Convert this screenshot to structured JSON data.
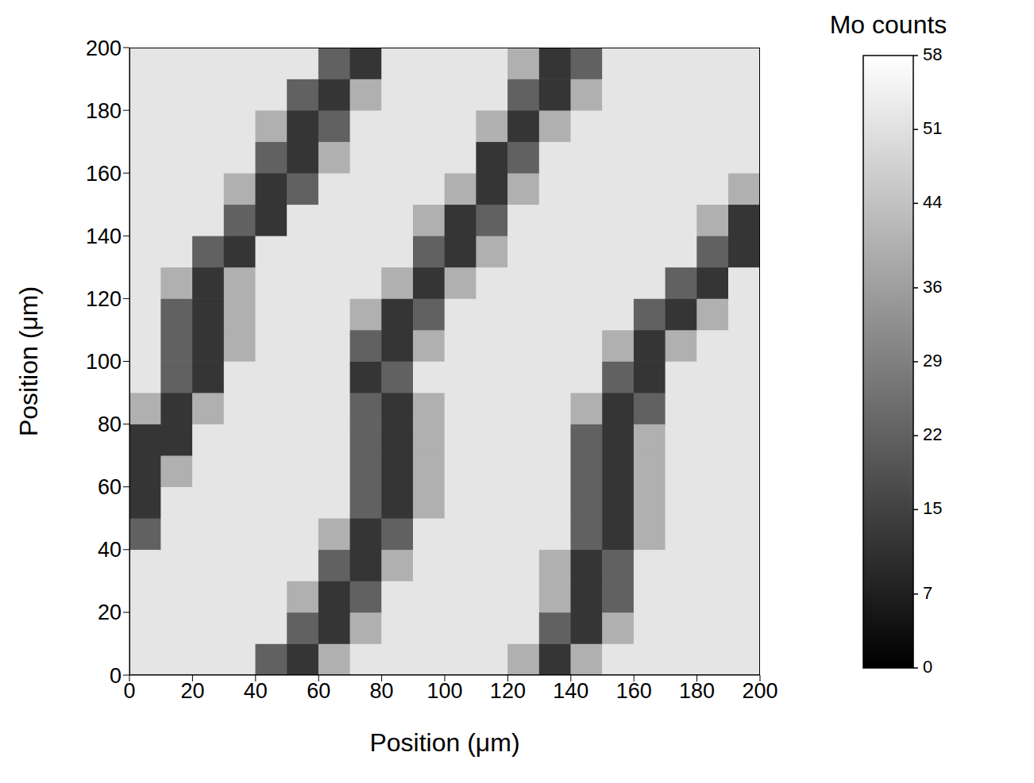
{
  "chart_data": {
    "type": "heatmap",
    "xlabel": "Position (μm)",
    "ylabel": "Position (μm)",
    "xlim": [
      0,
      200
    ],
    "ylim": [
      0,
      200
    ],
    "xticks": [
      0,
      20,
      40,
      60,
      80,
      100,
      120,
      140,
      160,
      180,
      200
    ],
    "yticks": [
      0,
      20,
      40,
      60,
      80,
      100,
      120,
      140,
      160,
      180,
      200
    ],
    "x": [
      5,
      15,
      25,
      35,
      45,
      55,
      65,
      75,
      85,
      95,
      105,
      115,
      125,
      135,
      145,
      155,
      165,
      175,
      185,
      195
    ],
    "y": [
      5,
      15,
      25,
      35,
      45,
      55,
      65,
      75,
      85,
      95,
      105,
      115,
      125,
      135,
      145,
      155,
      165,
      175,
      185,
      195
    ],
    "cells": [
      [
        52,
        52,
        52,
        52,
        22,
        12,
        40,
        52,
        52,
        52,
        52,
        52,
        40,
        12,
        40,
        52,
        52,
        52,
        52,
        52
      ],
      [
        52,
        52,
        52,
        52,
        52,
        22,
        12,
        40,
        52,
        52,
        52,
        52,
        52,
        22,
        12,
        40,
        52,
        52,
        52,
        52
      ],
      [
        52,
        52,
        52,
        52,
        52,
        40,
        12,
        22,
        52,
        52,
        52,
        52,
        52,
        40,
        12,
        22,
        52,
        52,
        52,
        52
      ],
      [
        52,
        52,
        52,
        52,
        52,
        52,
        22,
        12,
        40,
        52,
        52,
        52,
        52,
        40,
        12,
        22,
        52,
        52,
        52,
        52
      ],
      [
        22,
        52,
        52,
        52,
        52,
        52,
        40,
        12,
        22,
        52,
        52,
        52,
        52,
        52,
        22,
        12,
        40,
        52,
        52,
        52
      ],
      [
        12,
        52,
        52,
        52,
        52,
        52,
        52,
        22,
        12,
        40,
        52,
        52,
        52,
        52,
        22,
        12,
        40,
        52,
        52,
        52
      ],
      [
        12,
        40,
        52,
        52,
        52,
        52,
        52,
        22,
        12,
        40,
        52,
        52,
        52,
        52,
        22,
        12,
        40,
        52,
        52,
        52
      ],
      [
        12,
        12,
        52,
        52,
        52,
        52,
        52,
        22,
        12,
        40,
        52,
        52,
        52,
        52,
        22,
        12,
        40,
        52,
        52,
        52
      ],
      [
        40,
        12,
        40,
        52,
        52,
        52,
        52,
        22,
        12,
        40,
        52,
        52,
        52,
        52,
        40,
        12,
        22,
        52,
        52,
        52
      ],
      [
        52,
        22,
        12,
        52,
        52,
        52,
        52,
        12,
        22,
        52,
        52,
        52,
        52,
        52,
        52,
        22,
        12,
        52,
        52,
        52
      ],
      [
        52,
        22,
        12,
        40,
        52,
        52,
        52,
        22,
        12,
        40,
        52,
        52,
        52,
        52,
        52,
        40,
        12,
        40,
        52,
        52
      ],
      [
        52,
        22,
        12,
        40,
        52,
        52,
        52,
        40,
        12,
        22,
        52,
        52,
        52,
        52,
        52,
        52,
        22,
        12,
        40,
        52
      ],
      [
        52,
        40,
        12,
        40,
        52,
        52,
        52,
        52,
        40,
        12,
        40,
        52,
        52,
        52,
        52,
        52,
        52,
        22,
        12,
        52
      ],
      [
        52,
        52,
        22,
        12,
        52,
        52,
        52,
        52,
        52,
        22,
        12,
        40,
        52,
        52,
        52,
        52,
        52,
        52,
        22,
        12
      ],
      [
        52,
        52,
        52,
        22,
        12,
        52,
        52,
        52,
        52,
        40,
        12,
        22,
        52,
        52,
        52,
        52,
        52,
        52,
        40,
        12
      ],
      [
        52,
        52,
        52,
        40,
        12,
        22,
        52,
        52,
        52,
        52,
        40,
        12,
        40,
        52,
        52,
        52,
        52,
        52,
        52,
        40
      ],
      [
        52,
        52,
        52,
        52,
        22,
        12,
        40,
        52,
        52,
        52,
        52,
        12,
        22,
        52,
        52,
        52,
        52,
        52,
        52,
        52
      ],
      [
        52,
        52,
        52,
        52,
        40,
        12,
        22,
        52,
        52,
        52,
        52,
        40,
        12,
        40,
        52,
        52,
        52,
        52,
        52,
        52
      ],
      [
        52,
        52,
        52,
        52,
        52,
        22,
        12,
        40,
        52,
        52,
        52,
        52,
        22,
        12,
        40,
        52,
        52,
        52,
        52,
        52
      ],
      [
        52,
        52,
        52,
        52,
        52,
        52,
        22,
        12,
        52,
        52,
        52,
        52,
        40,
        12,
        22,
        52,
        52,
        52,
        52,
        52
      ]
    ],
    "colorbar": {
      "title": "Mo counts",
      "range": [
        0,
        58
      ],
      "ticks": [
        0,
        7,
        15,
        22,
        29,
        36,
        44,
        51,
        58
      ],
      "colors": [
        "#000000",
        "#ffffff"
      ]
    }
  }
}
